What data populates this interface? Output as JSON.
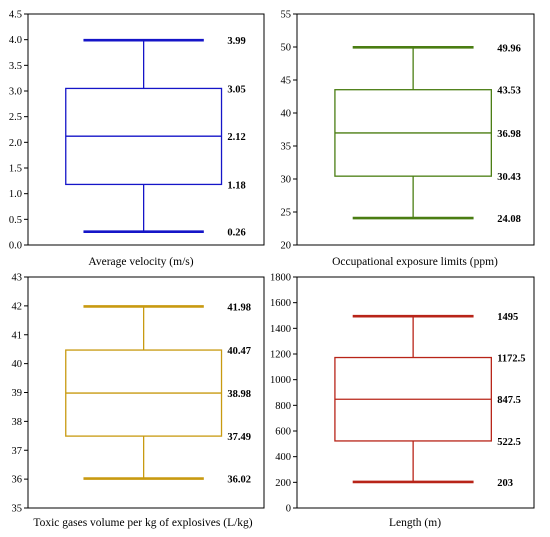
{
  "chart_data": [
    {
      "type": "box",
      "xlabel": "Average velocity (m/s)",
      "ylim": [
        0.0,
        4.5
      ],
      "yticks": [
        "0.0",
        "0.5",
        "1.0",
        "1.5",
        "2.0",
        "2.5",
        "3.0",
        "3.5",
        "4.0",
        "4.5"
      ],
      "color": "#1515c8",
      "values": {
        "max": 3.99,
        "q3": 3.05,
        "median": 2.12,
        "q1": 1.18,
        "min": 0.26
      },
      "labels": {
        "max": "3.99",
        "q3": "3.05",
        "median": "2.12",
        "q1": "1.18",
        "min": "0.26"
      }
    },
    {
      "type": "box",
      "xlabel": "Occupational exposure limits (ppm)",
      "ylim": [
        20,
        55
      ],
      "yticks": [
        "20",
        "25",
        "30",
        "35",
        "40",
        "45",
        "50",
        "55"
      ],
      "color": "#4a7d12",
      "values": {
        "max": 49.96,
        "q3": 43.53,
        "median": 36.98,
        "q1": 30.43,
        "min": 24.08
      },
      "labels": {
        "max": "49.96",
        "q3": "43.53",
        "median": "36.98",
        "q1": "30.43",
        "min": "24.08"
      }
    },
    {
      "type": "box",
      "xlabel": "Toxic gases volume per kg of explosives (L/kg)",
      "ylim": [
        35,
        43
      ],
      "yticks": [
        "35",
        "36",
        "37",
        "38",
        "39",
        "40",
        "41",
        "42",
        "43"
      ],
      "color": "#c89a10",
      "values": {
        "max": 41.98,
        "q3": 40.47,
        "median": 38.98,
        "q1": 37.49,
        "min": 36.02
      },
      "labels": {
        "max": "41.98",
        "q3": "40.47",
        "median": "38.98",
        "q1": "37.49",
        "min": "36.02"
      }
    },
    {
      "type": "box",
      "xlabel": "Length (m)",
      "ylim": [
        0,
        1800
      ],
      "yticks": [
        "0",
        "200",
        "400",
        "600",
        "800",
        "1000",
        "1200",
        "1400",
        "1600",
        "1800"
      ],
      "color": "#b82418",
      "values": {
        "max": 1495,
        "q3": 1172.5,
        "median": 847.5,
        "q1": 522.5,
        "min": 203
      },
      "labels": {
        "max": "1495",
        "q3": "1172.5",
        "median": "847.5",
        "q1": "522.5",
        "min": "203"
      }
    }
  ]
}
